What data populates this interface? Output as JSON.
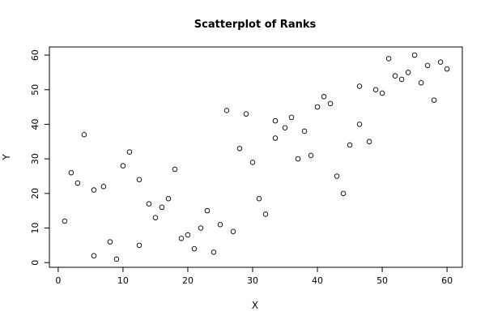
{
  "chart_data": {
    "type": "scatter",
    "title": "Scatterplot of Ranks",
    "x_label": "X",
    "y_label": "Y",
    "x": [
      1,
      2,
      3,
      4,
      5.5,
      5.5,
      7,
      8,
      9,
      10,
      11,
      12.5,
      12.5,
      14,
      15,
      16,
      17,
      18,
      19,
      20,
      21,
      22,
      23,
      24,
      25,
      26,
      27,
      28,
      29,
      30,
      31,
      32,
      33.5,
      33.5,
      35,
      36,
      37,
      38,
      39,
      40,
      41,
      42,
      43,
      44,
      45,
      46.5,
      46.5,
      48,
      49,
      50,
      51,
      52,
      53,
      54,
      55,
      56,
      57,
      58,
      59,
      60
    ],
    "y": [
      12,
      26,
      23,
      37,
      21,
      2,
      22,
      6,
      1,
      28,
      32,
      24,
      5,
      17,
      13,
      16,
      18.5,
      27,
      7,
      8,
      4,
      10,
      15,
      3,
      11,
      44,
      9,
      33,
      43,
      29,
      18.5,
      14,
      41,
      36,
      39,
      42,
      30,
      38,
      31,
      45,
      48,
      46,
      25,
      20,
      34,
      51,
      40,
      35,
      50,
      49,
      59,
      54,
      53,
      55,
      60,
      52,
      57,
      47,
      58,
      56
    ],
    "xlim": [
      -1.36,
      62.36
    ],
    "ylim": [
      -1.36,
      62.36
    ],
    "xticks": [
      0,
      10,
      20,
      30,
      40,
      50,
      60
    ],
    "yticks": [
      0,
      10,
      20,
      30,
      40,
      50,
      60
    ]
  }
}
